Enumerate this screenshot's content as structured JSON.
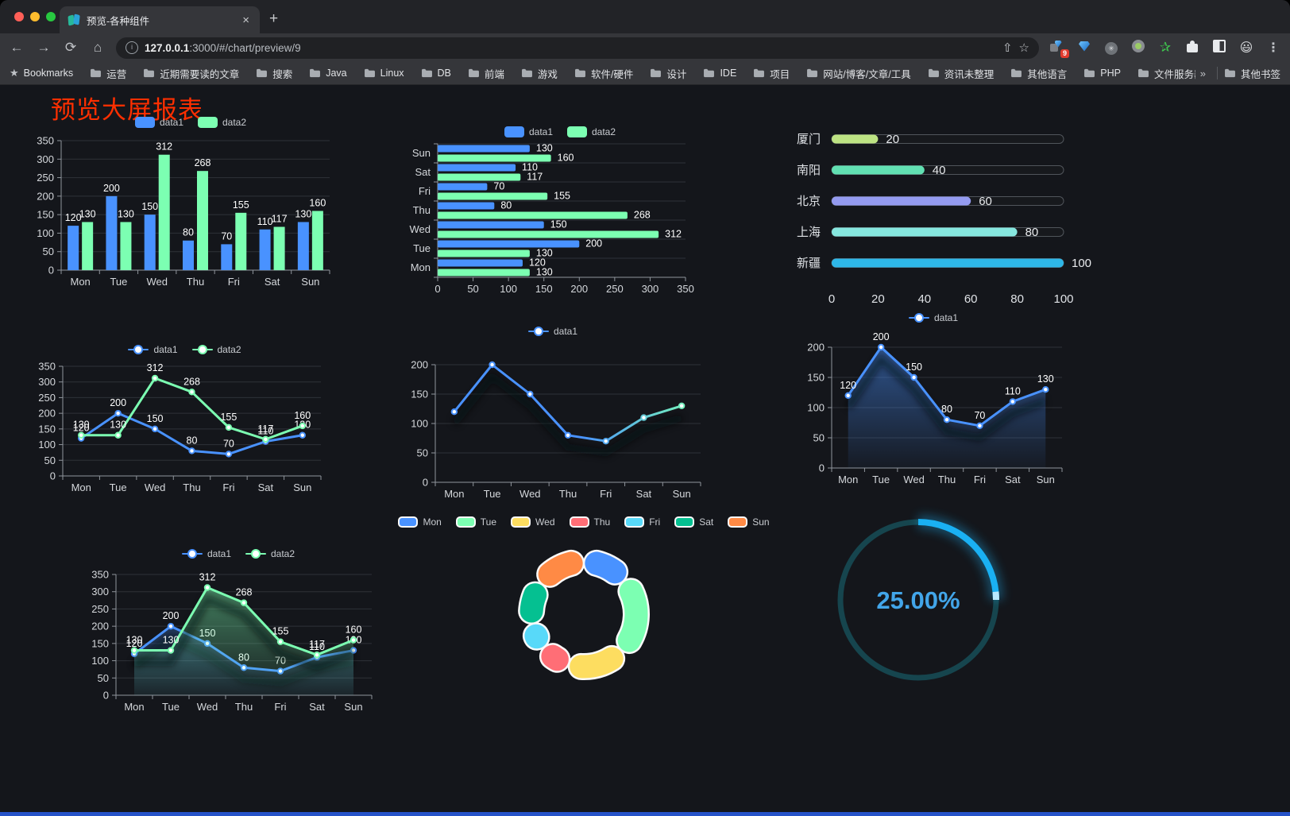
{
  "browser": {
    "tab": {
      "title": "预览-各种组件",
      "close_glyph": "×",
      "new_tab_glyph": "+"
    },
    "url": {
      "host": "127.0.0.1",
      "rest": ":3000/#/chart/preview/9"
    },
    "toolbar_icons": {
      "back": "←",
      "forward": "→",
      "reload": "⟳",
      "home": "⌂",
      "share": "⇧",
      "star": "☆",
      "menu": "⋮",
      "extension_badge": "9",
      "circle_glyph": "✳",
      "green_star": "✰"
    },
    "bookmarks_label": "Bookmarks",
    "bookmarks": [
      "运营",
      "近期需要读的文章",
      "搜索",
      "Java",
      "Linux",
      "DB",
      "前端",
      "游戏",
      "软件/硬件",
      "设计",
      "IDE",
      "项目",
      "网站/博客/文章/工具",
      "资讯未整理",
      "其他语言",
      "PHP",
      "文件服务器"
    ],
    "bookmarks_overflow": "»",
    "other_bookmarks": "其他书签"
  },
  "page": {
    "title": "预览大屏报表",
    "title_color": "#ff2f00"
  },
  "palette": {
    "blue": "#4992ff",
    "green": "#7cffb2",
    "yellow": "#fddd60",
    "red": "#ff6e76",
    "cyan": "#58d9f9",
    "teal": "#05c091",
    "orange": "#ff8a45"
  },
  "chart_data": [
    {
      "id": "bar-vertical",
      "type": "bar",
      "categories": [
        "Mon",
        "Tue",
        "Wed",
        "Thu",
        "Fri",
        "Sat",
        "Sun"
      ],
      "series": [
        {
          "name": "data1",
          "color": "#4992ff",
          "values": [
            120,
            200,
            150,
            80,
            70,
            110,
            130
          ]
        },
        {
          "name": "data2",
          "color": "#7cffb2",
          "values": [
            130,
            130,
            312,
            268,
            155,
            117,
            160
          ]
        }
      ],
      "ylim": [
        0,
        350
      ],
      "tick_interval": 50,
      "yticks": [
        0,
        50,
        100,
        150,
        200,
        250,
        300,
        350
      ]
    },
    {
      "id": "bar-horizontal",
      "type": "bar",
      "orientation": "horizontal",
      "categories": [
        "Mon",
        "Tue",
        "Wed",
        "Thu",
        "Fri",
        "Sat",
        "Sun"
      ],
      "series": [
        {
          "name": "data1",
          "color": "#4992ff",
          "values": [
            120,
            200,
            150,
            80,
            70,
            110,
            130
          ]
        },
        {
          "name": "data2",
          "color": "#7cffb2",
          "values": [
            130,
            130,
            312,
            268,
            155,
            117,
            160
          ]
        }
      ],
      "xlim": [
        0,
        350
      ],
      "tick_interval": 50,
      "xticks": [
        0,
        50,
        100,
        150,
        200,
        250,
        300,
        350
      ]
    },
    {
      "id": "progress-bars",
      "type": "bar",
      "orientation": "horizontal-progress",
      "items": [
        {
          "label": "厦门",
          "value": 20,
          "color": "#bde383"
        },
        {
          "label": "南阳",
          "value": 40,
          "color": "#61e0b2"
        },
        {
          "label": "北京",
          "value": 60,
          "color": "#949bf0"
        },
        {
          "label": "上海",
          "value": 80,
          "color": "#86e7df"
        },
        {
          "label": "新疆",
          "value": 100,
          "color": "#2eb7e8"
        }
      ],
      "max": 100,
      "axis_ticks": [
        0,
        20,
        40,
        60,
        80,
        100
      ]
    },
    {
      "id": "line-two-series",
      "type": "line",
      "categories": [
        "Mon",
        "Tue",
        "Wed",
        "Thu",
        "Fri",
        "Sat",
        "Sun"
      ],
      "series": [
        {
          "name": "data1",
          "color": "#4992ff",
          "values": [
            120,
            200,
            150,
            80,
            70,
            110,
            130
          ]
        },
        {
          "name": "data2",
          "color": "#7cffb2",
          "values": [
            130,
            130,
            312,
            268,
            155,
            117,
            160
          ]
        }
      ],
      "ylim": [
        0,
        350
      ],
      "tick_interval": 50
    },
    {
      "id": "line-gradient",
      "type": "line",
      "categories": [
        "Mon",
        "Tue",
        "Wed",
        "Thu",
        "Fri",
        "Sat",
        "Sun"
      ],
      "series": [
        {
          "name": "data1",
          "color": "#4992ff",
          "gradient_to": "#7cffb2",
          "values": [
            120,
            200,
            150,
            80,
            70,
            110,
            130
          ]
        }
      ],
      "ylim": [
        0,
        200
      ],
      "tick_interval": 50
    },
    {
      "id": "area-single",
      "type": "area",
      "categories": [
        "Mon",
        "Tue",
        "Wed",
        "Thu",
        "Fri",
        "Sat",
        "Sun"
      ],
      "series": [
        {
          "name": "data1",
          "color": "#4992ff",
          "values": [
            120,
            200,
            150,
            80,
            70,
            110,
            130
          ]
        }
      ],
      "ylim": [
        0,
        200
      ],
      "tick_interval": 50
    },
    {
      "id": "area-two-series",
      "type": "area",
      "categories": [
        "Mon",
        "Tue",
        "Wed",
        "Thu",
        "Fri",
        "Sat",
        "Sun"
      ],
      "series": [
        {
          "name": "data1",
          "color": "#4992ff",
          "values": [
            120,
            200,
            150,
            80,
            70,
            110,
            130
          ]
        },
        {
          "name": "data2",
          "color": "#7cffb2",
          "values": [
            130,
            130,
            312,
            268,
            155,
            117,
            160
          ]
        }
      ],
      "ylim": [
        0,
        350
      ],
      "tick_interval": 50
    },
    {
      "id": "donut",
      "type": "pie",
      "categories": [
        "Mon",
        "Tue",
        "Wed",
        "Thu",
        "Fri",
        "Sat",
        "Sun"
      ],
      "values": [
        120,
        200,
        150,
        80,
        70,
        110,
        130
      ],
      "colors": [
        "#4992ff",
        "#7cffb2",
        "#fddd60",
        "#ff6e76",
        "#58d9f9",
        "#05c091",
        "#ff8a45"
      ]
    },
    {
      "id": "gauge",
      "type": "gauge",
      "value": 25,
      "label": "25.00%",
      "color": "#1ab0f2",
      "text_color": "#42a5e9",
      "track_color": "#16454e"
    }
  ]
}
